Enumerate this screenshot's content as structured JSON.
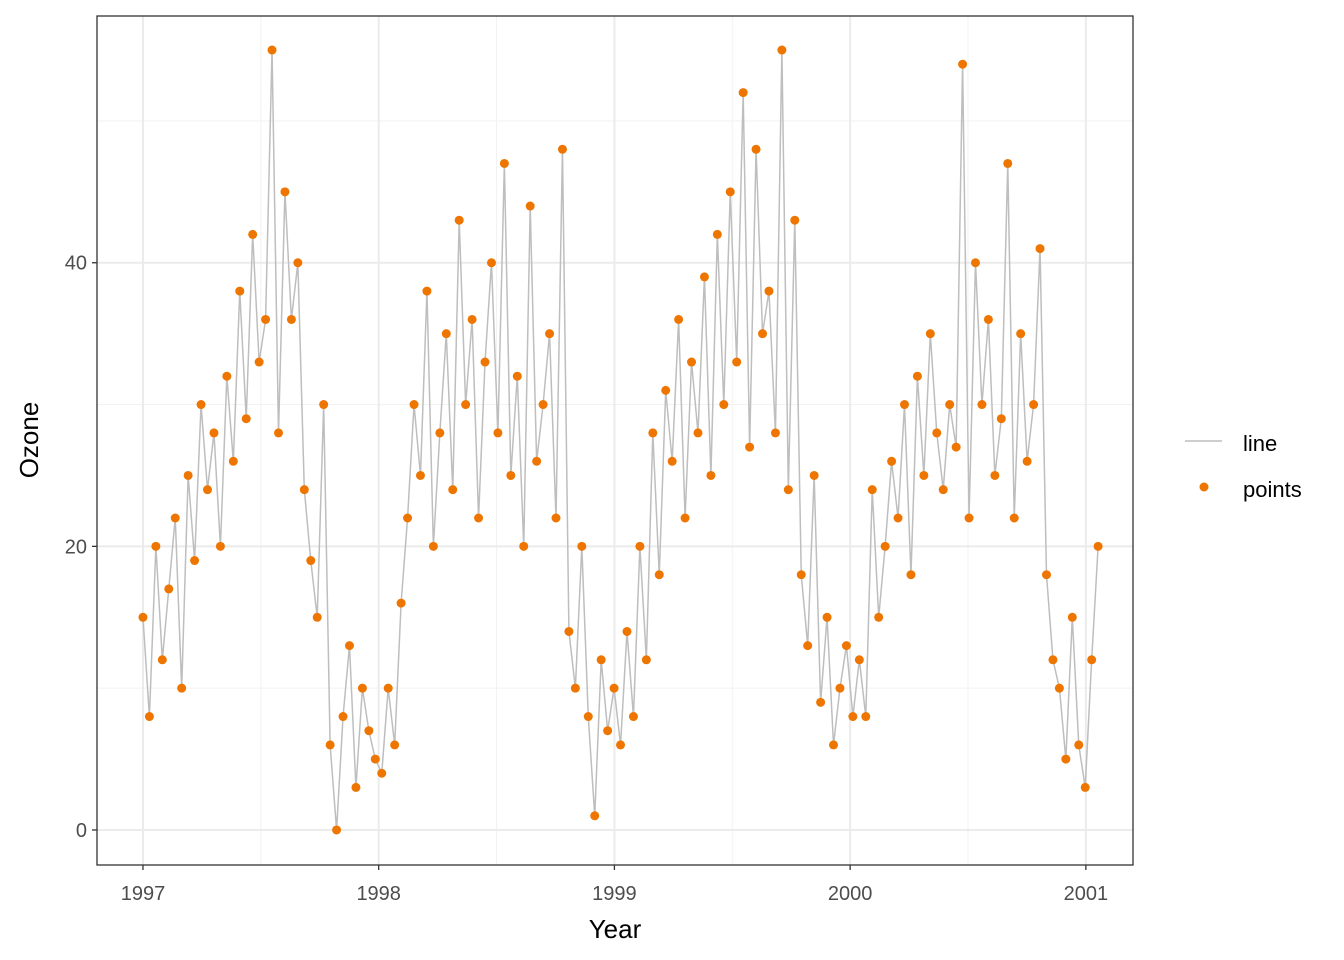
{
  "chart_data": {
    "type": "line",
    "title": "",
    "xlabel": "Year",
    "ylabel": "Ozone",
    "x_start": 1997.0,
    "step_days": 10,
    "xlim": [
      1996.805,
      2001.2
    ],
    "ylim": [
      -2.47,
      57.4
    ],
    "x_ticks": [
      1997,
      1998,
      1999,
      2000,
      2001
    ],
    "x_tick_labels": [
      "1997",
      "1998",
      "1999",
      "2000",
      "2001"
    ],
    "y_ticks": [
      0,
      20,
      40
    ],
    "y_tick_labels": [
      "0",
      "20",
      "40"
    ],
    "grid": true,
    "legend": {
      "placement": "right",
      "entries": [
        "line",
        "points"
      ]
    },
    "series": [
      {
        "name": "line",
        "color": "#BEBEBE",
        "kind": "line"
      },
      {
        "name": "points",
        "color": "#EE7600",
        "kind": "points"
      }
    ],
    "values": [
      15,
      8,
      20,
      12,
      17,
      22,
      10,
      25,
      19,
      30,
      24,
      28,
      20,
      32,
      26,
      38,
      29,
      42,
      33,
      36,
      55,
      28,
      45,
      36,
      40,
      24,
      19,
      15,
      30,
      6,
      0,
      8,
      13,
      3,
      10,
      7,
      5,
      4,
      10,
      6,
      16,
      22,
      30,
      25,
      38,
      20,
      28,
      35,
      24,
      43,
      30,
      36,
      22,
      33,
      40,
      28,
      47,
      25,
      32,
      20,
      44,
      26,
      30,
      35,
      22,
      48,
      14,
      10,
      20,
      8,
      1,
      12,
      7,
      10,
      6,
      14,
      8,
      20,
      12,
      28,
      18,
      31,
      26,
      36,
      22,
      33,
      28,
      39,
      25,
      42,
      30,
      45,
      33,
      52,
      27,
      48,
      35,
      38,
      28,
      55,
      24,
      43,
      18,
      13,
      25,
      9,
      15,
      6,
      10,
      13,
      8,
      12,
      8,
      24,
      15,
      20,
      26,
      22,
      30,
      18,
      32,
      25,
      35,
      28,
      24,
      30,
      27,
      54,
      22,
      40,
      30,
      36,
      25,
      29,
      47,
      22,
      35,
      26,
      30,
      41,
      18,
      12,
      10,
      5,
      15,
      6,
      3,
      12,
      20
    ]
  }
}
